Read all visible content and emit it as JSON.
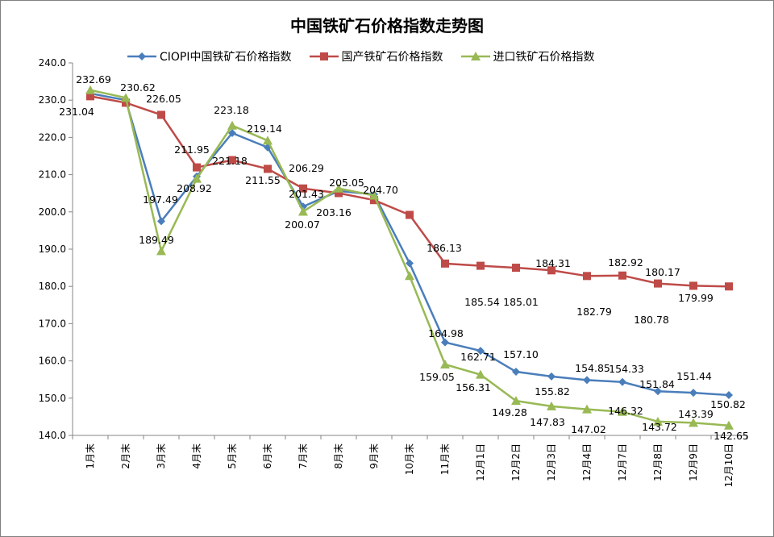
{
  "chart_data": {
    "type": "line",
    "title": "中国铁矿石价格指数走势图",
    "xlabel": "",
    "ylabel": "",
    "ylim": [
      140,
      240
    ],
    "ytick_labels": [
      "140.0",
      "150.0",
      "160.0",
      "170.0",
      "180.0",
      "190.0",
      "200.0",
      "210.0",
      "220.0",
      "230.0",
      "240.0"
    ],
    "categories": [
      "1月末",
      "2月末",
      "3月末",
      "4月末",
      "5月末",
      "6月末",
      "7月末",
      "8月末",
      "9月末",
      "10月末",
      "11月末",
      "12月1日",
      "12月2日",
      "12月3日",
      "12月4日",
      "12月7日",
      "12月8日",
      "12月9日",
      "12月10日"
    ],
    "grid": false,
    "legend_position": "top",
    "series": [
      {
        "name": "CIOPI中国铁矿石价格指数",
        "color": "#4a7ebb",
        "marker": "diamond",
        "values": [
          231.8,
          230.0,
          197.49,
          209.5,
          221.18,
          217.3,
          201.43,
          205.6,
          204.7,
          186.2,
          164.98,
          162.71,
          157.1,
          155.82,
          154.85,
          154.33,
          151.84,
          151.44,
          150.82
        ]
      },
      {
        "name": "国产铁矿石价格指数",
        "color": "#be4b48",
        "marker": "square",
        "values": [
          231.04,
          229.3,
          226.05,
          211.95,
          213.9,
          211.55,
          206.29,
          205.05,
          203.16,
          199.2,
          186.13,
          185.54,
          185.01,
          184.31,
          182.79,
          182.92,
          180.78,
          180.17,
          179.99
        ]
      },
      {
        "name": "进口铁矿石价格指数",
        "color": "#98b954",
        "marker": "triangle",
        "values": [
          232.69,
          230.62,
          189.49,
          208.92,
          223.18,
          219.14,
          200.07,
          206.3,
          204.4,
          182.8,
          159.05,
          156.31,
          149.28,
          147.83,
          147.02,
          146.32,
          143.72,
          143.39,
          142.65
        ]
      }
    ],
    "data_labels": [
      {
        "text": "232.69"
      },
      {
        "text": "231.04"
      },
      {
        "text": "230.62"
      },
      {
        "text": "226.05"
      },
      {
        "text": "197.49"
      },
      {
        "text": "189.49"
      },
      {
        "text": "211.95"
      },
      {
        "text": "208.92"
      },
      {
        "text": "223.18"
      },
      {
        "text": "221.18"
      },
      {
        "text": "219.14"
      },
      {
        "text": "211.55"
      },
      {
        "text": "206.29"
      },
      {
        "text": "201.43"
      },
      {
        "text": "200.07"
      },
      {
        "text": "205.05"
      },
      {
        "text": "204.70"
      },
      {
        "text": "203.16"
      },
      {
        "text": "186.13"
      },
      {
        "text": "185.54"
      },
      {
        "text": "185.01"
      },
      {
        "text": "184.31"
      },
      {
        "text": "182.92"
      },
      {
        "text": "182.79"
      },
      {
        "text": "180.17"
      },
      {
        "text": "180.78"
      },
      {
        "text": "179.99"
      },
      {
        "text": "164.98"
      },
      {
        "text": "162.71"
      },
      {
        "text": "157.10"
      },
      {
        "text": "159.05"
      },
      {
        "text": "156.31"
      },
      {
        "text": "154.85"
      },
      {
        "text": "154.33"
      },
      {
        "text": "151.84"
      },
      {
        "text": "151.44"
      },
      {
        "text": "150.82"
      },
      {
        "text": "155.82"
      },
      {
        "text": "149.28"
      },
      {
        "text": "147.83"
      },
      {
        "text": "147.02"
      },
      {
        "text": "146.32"
      },
      {
        "text": "143.72"
      },
      {
        "text": "143.39"
      },
      {
        "text": "142.65"
      }
    ]
  }
}
